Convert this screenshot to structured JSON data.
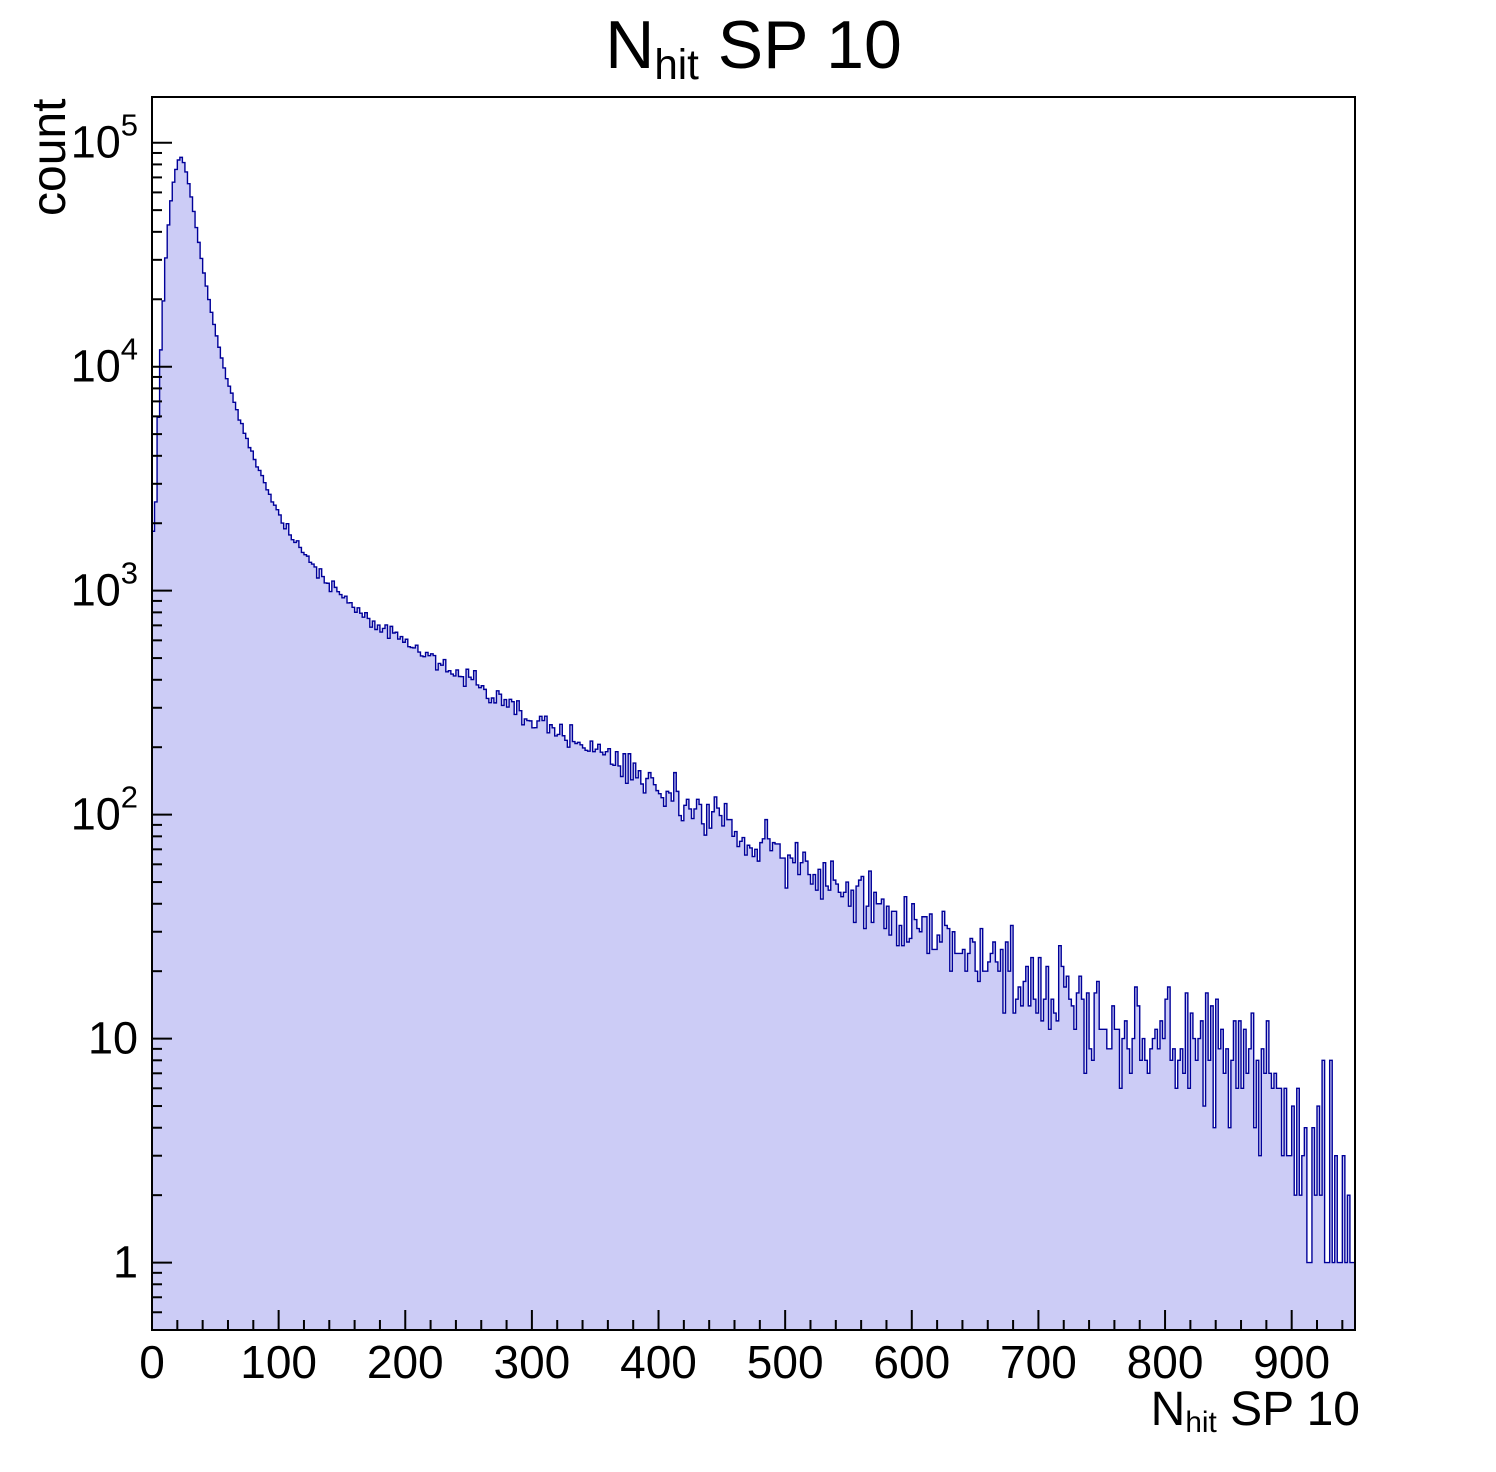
{
  "chart_data": {
    "type": "histogram",
    "title": "N_hit SP 10",
    "title_parts": {
      "main": "N",
      "sub": "hit",
      "rest": " SP 10"
    },
    "xlabel_parts": {
      "main": "N",
      "sub": "hit",
      "rest": " SP 10"
    },
    "ylabel": "count",
    "x_range": [
      0,
      950
    ],
    "y_range": [
      0.5,
      160000
    ],
    "y_scale": "log",
    "bin_width": 2,
    "x_major_ticks": [
      0,
      100,
      200,
      300,
      400,
      500,
      600,
      700,
      800,
      900
    ],
    "x_minor_step": 20,
    "y_major_decades": [
      0,
      1,
      2,
      3,
      4,
      5
    ],
    "legend": "none",
    "grid": "off",
    "colors": {
      "fill": "#ccccf6",
      "line": "#000099",
      "axis": "#000000"
    },
    "noise_seed": 987654321,
    "anchors": [
      [
        0,
        2400
      ],
      [
        2,
        1400
      ],
      [
        4,
        4000
      ],
      [
        6,
        9000
      ],
      [
        8,
        16000
      ],
      [
        12,
        38000
      ],
      [
        16,
        62000
      ],
      [
        20,
        82000
      ],
      [
        23,
        86000
      ],
      [
        26,
        79000
      ],
      [
        30,
        62000
      ],
      [
        35,
        42000
      ],
      [
        40,
        28000
      ],
      [
        45,
        20000
      ],
      [
        50,
        14500
      ],
      [
        55,
        11000
      ],
      [
        60,
        8500
      ],
      [
        70,
        5600
      ],
      [
        80,
        4000
      ],
      [
        90,
        2900
      ],
      [
        100,
        2200
      ],
      [
        110,
        1800
      ],
      [
        120,
        1500
      ],
      [
        130,
        1250
      ],
      [
        140,
        1080
      ],
      [
        150,
        950
      ],
      [
        160,
        840
      ],
      [
        170,
        760
      ],
      [
        180,
        690
      ],
      [
        190,
        640
      ],
      [
        200,
        590
      ],
      [
        220,
        500
      ],
      [
        240,
        430
      ],
      [
        260,
        370
      ],
      [
        280,
        320
      ],
      [
        300,
        270
      ],
      [
        320,
        235
      ],
      [
        340,
        205
      ],
      [
        360,
        180
      ],
      [
        380,
        150
      ],
      [
        400,
        125
      ],
      [
        420,
        110
      ],
      [
        440,
        98
      ],
      [
        460,
        85
      ],
      [
        480,
        72
      ],
      [
        500,
        62
      ],
      [
        520,
        55
      ],
      [
        540,
        48
      ],
      [
        560,
        43
      ],
      [
        580,
        37
      ],
      [
        600,
        32
      ],
      [
        620,
        28
      ],
      [
        640,
        25
      ],
      [
        660,
        22
      ],
      [
        680,
        20
      ],
      [
        700,
        18
      ],
      [
        720,
        15
      ],
      [
        740,
        13
      ],
      [
        760,
        12
      ],
      [
        780,
        11
      ],
      [
        800,
        10
      ],
      [
        820,
        9
      ],
      [
        840,
        8
      ],
      [
        860,
        7
      ],
      [
        880,
        6
      ],
      [
        900,
        5
      ],
      [
        910,
        4
      ],
      [
        920,
        2.5
      ],
      [
        930,
        1.5
      ],
      [
        940,
        1
      ],
      [
        950,
        1
      ]
    ]
  }
}
